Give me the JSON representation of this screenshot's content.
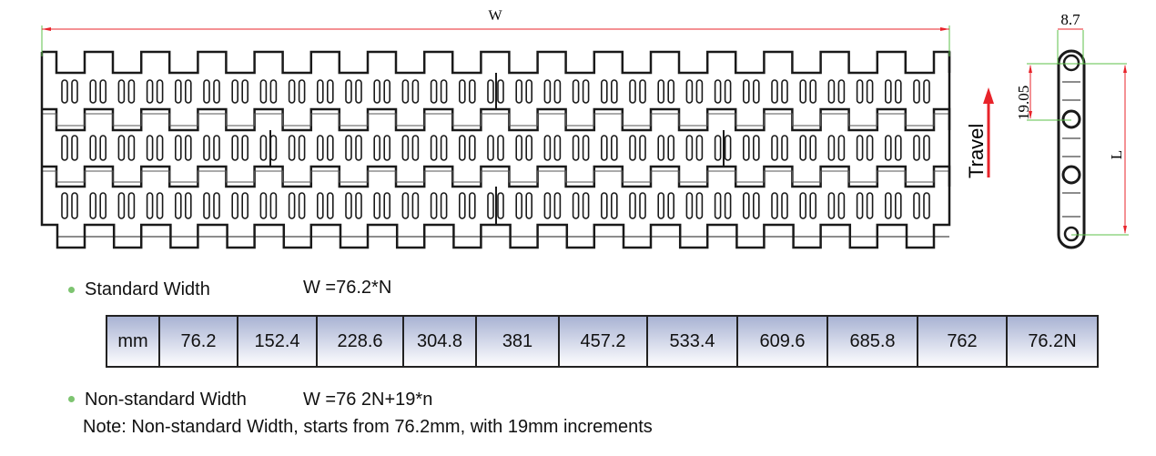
{
  "drawing": {
    "width_label": "W",
    "pitch_label": "8.7",
    "pitch_side_label": "19.05",
    "length_label": "L",
    "travel_label": "Travel",
    "colors": {
      "dimension": "#e8232a",
      "extension": "#5cc24a",
      "outline": "#1a1a1a"
    }
  },
  "standard": {
    "label": "Standard Width",
    "formula": "W  =76.2*N"
  },
  "width_table": {
    "unit": "mm",
    "values": [
      "76.2",
      "152.4",
      "228.6",
      "304.8",
      "381",
      "457.2",
      "533.4",
      "609.6",
      "685.8",
      "762",
      "76.2N"
    ]
  },
  "non_standard": {
    "label": "Non-standard Width",
    "formula": "W  =76 2N+19*n",
    "note": "Note: Non-standard Width, starts from 76.2mm, with 19mm increments"
  }
}
